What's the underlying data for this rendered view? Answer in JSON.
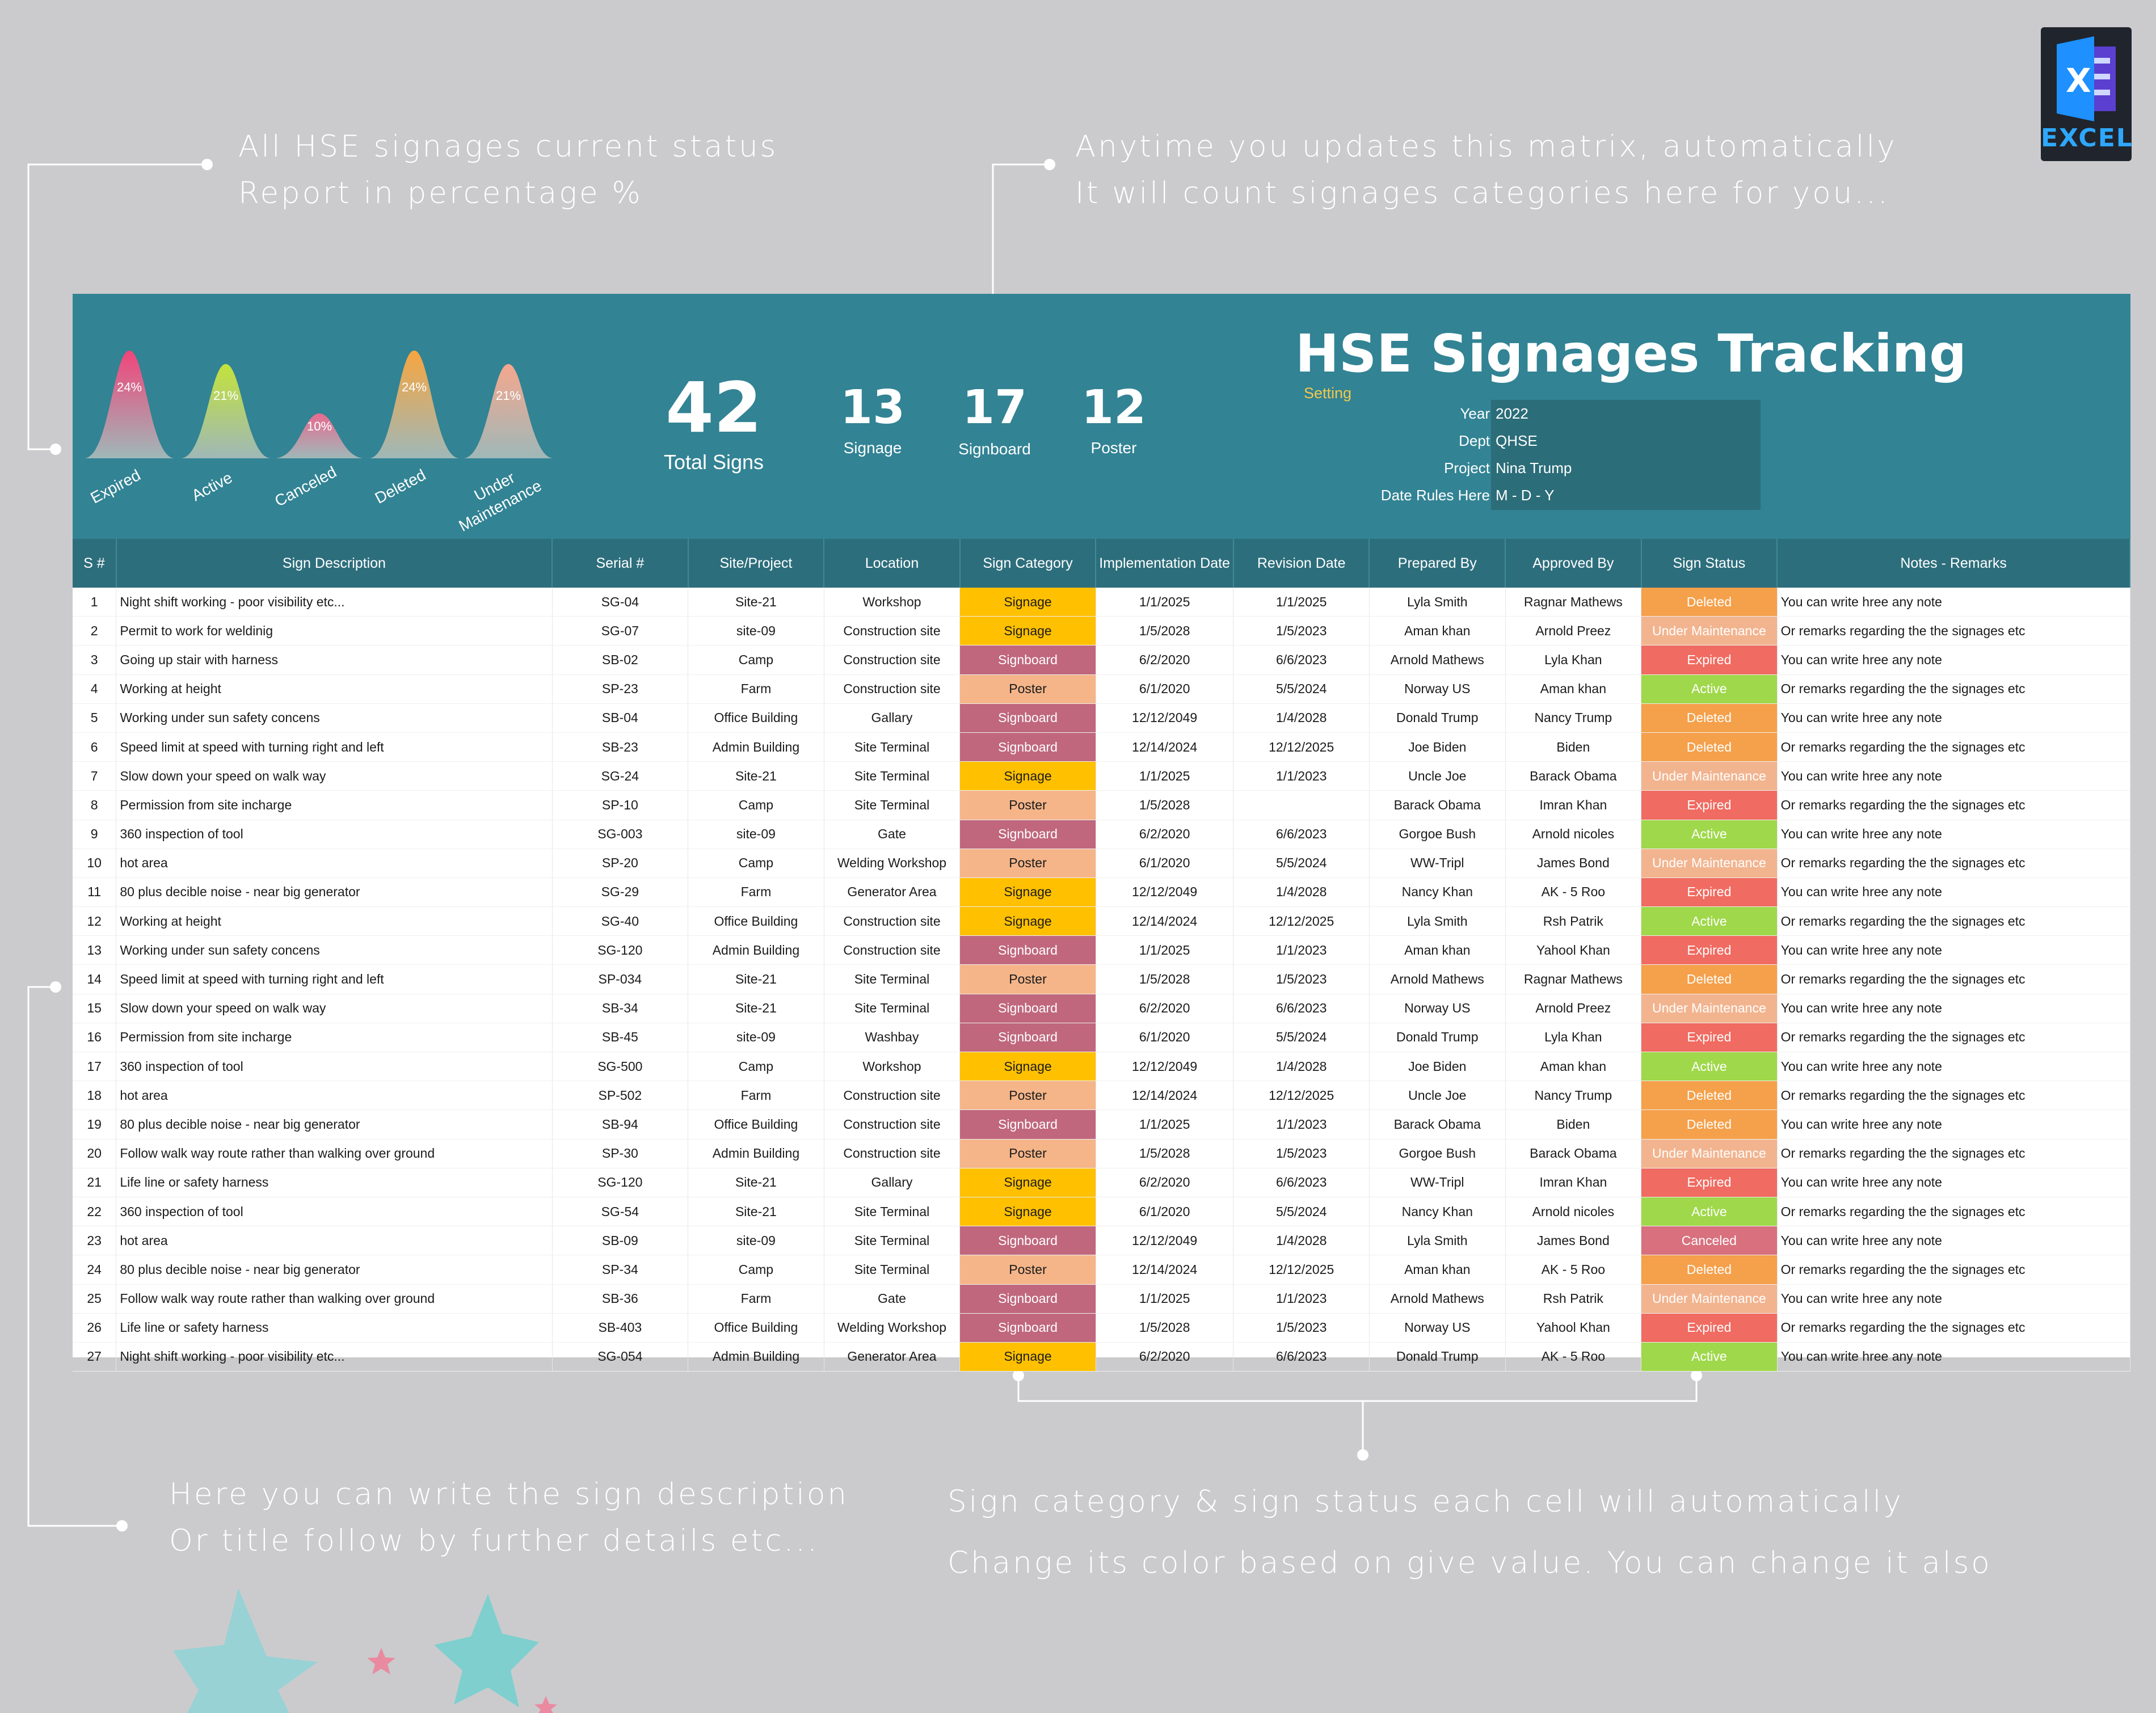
{
  "callouts": {
    "top_left": [
      "All HSE signages current status",
      "Report in percentage %"
    ],
    "top_right": [
      "Anytime you updates this matrix, automatically",
      "It will count signages categories here for you..."
    ],
    "bottom_left": [
      "Here you can write the sign description",
      "Or title follow by further details etc..."
    ],
    "bottom_right": [
      "Sign category & sign status each cell will automatically",
      "Change its color based on give value. You can change it also"
    ]
  },
  "logo": {
    "label": "EXCEL",
    "letter": "X",
    "icon": "excel-icon"
  },
  "title": "HSE Signages Tracking",
  "setting_label": "Setting",
  "settings": [
    {
      "label": "Year",
      "value": "2022"
    },
    {
      "label": "Dept",
      "value": "QHSE"
    },
    {
      "label": "Project",
      "value": "Nina Trump"
    },
    {
      "label": "Date Rules Here",
      "value": "M - D - Y"
    }
  ],
  "kpis": {
    "total": {
      "value": "42",
      "label": "Total Signs"
    },
    "signage": {
      "value": "13",
      "label": "Signage"
    },
    "signboard": {
      "value": "17",
      "label": "Signboard"
    },
    "poster": {
      "value": "12",
      "label": "Poster"
    }
  },
  "status_chart": {
    "type": "area",
    "categories": [
      "Expired",
      "Active",
      "Canceled",
      "Deleted",
      "Under Maintenance"
    ],
    "labels": [
      "24%",
      "21%",
      "10%",
      "24%",
      "21%"
    ],
    "values": [
      24,
      21,
      10,
      24,
      21
    ],
    "colors": [
      "#f0457a",
      "#c3e23a",
      "#e86a8f",
      "#f7a53f",
      "#f5a78e"
    ]
  },
  "colors": {
    "banner": "#328394",
    "header": "#2d6e7c",
    "signage": "#ffc000",
    "signboard": "#c0677d",
    "poster": "#f5b589",
    "deleted": "#f5a04a",
    "under_maintenance": "#f2b48f",
    "expired": "#f06b61",
    "active": "#9fd84a",
    "canceled": "#d8707e"
  },
  "table": {
    "headers": [
      "S #",
      "Sign Description",
      "Serial #",
      "Site/Project",
      "Location",
      "Sign Category",
      "Implementation Date",
      "Revision Date",
      "Prepared By",
      "Approved By",
      "Sign  Status",
      "Notes - Remarks"
    ],
    "rows": [
      [
        "1",
        "Night shift working - poor visibility etc...",
        "SG-04",
        "Site-21",
        "Workshop",
        "Signage",
        "1/1/2025",
        "1/1/2025",
        "Lyla Smith",
        "Ragnar Mathews",
        "Deleted",
        "You can write hree any note"
      ],
      [
        "2",
        "Permit to work for weldinig",
        "SG-07",
        "site-09",
        "Construction site",
        "Signage",
        "1/5/2028",
        "1/5/2023",
        "Aman khan",
        "Arnold Preez",
        "Under Maintenance",
        "Or remarks regarding the the signages etc"
      ],
      [
        "3",
        "Going up stair with harness",
        "SB-02",
        "Camp",
        "Construction site",
        "Signboard",
        "6/2/2020",
        "6/6/2023",
        "Arnold Mathews",
        "Lyla Khan",
        "Expired",
        "You can write hree any note"
      ],
      [
        "4",
        "Working at height",
        "SP-23",
        "Farm",
        "Construction site",
        "Poster",
        "6/1/2020",
        "5/5/2024",
        "Norway US",
        "Aman khan",
        "Active",
        "Or remarks regarding the the signages etc"
      ],
      [
        "5",
        "Working under sun safety concens",
        "SB-04",
        "Office Building",
        "Gallary",
        "Signboard",
        "12/12/2049",
        "1/4/2028",
        "Donald Trump",
        "Nancy Trump",
        "Deleted",
        "You can write hree any note"
      ],
      [
        "6",
        "Speed limit at speed with turning right and left",
        "SB-23",
        "Admin Building",
        "Site Terminal",
        "Signboard",
        "12/14/2024",
        "12/12/2025",
        "Joe Biden",
        "Biden",
        "Deleted",
        "Or remarks regarding the the signages etc"
      ],
      [
        "7",
        "Slow down your speed on walk way",
        "SG-24",
        "Site-21",
        "Site Terminal",
        "Signage",
        "1/1/2025",
        "1/1/2023",
        "Uncle Joe",
        "Barack Obama",
        "Under Maintenance",
        "You can write hree any note"
      ],
      [
        "8",
        "Permission from site incharge",
        "SP-10",
        "Camp",
        "Site Terminal",
        "Poster",
        "1/5/2028",
        "",
        "Barack Obama",
        "Imran Khan",
        "Expired",
        "Or remarks regarding the the signages etc"
      ],
      [
        "9",
        "360 inspection of tool",
        "SG-003",
        "site-09",
        "Gate",
        "Signboard",
        "6/2/2020",
        "6/6/2023",
        "Gorgoe Bush",
        "Arnold nicoles",
        "Active",
        "You can write hree any note"
      ],
      [
        "10",
        "hot area",
        "SP-20",
        "Camp",
        "Welding Workshop",
        "Poster",
        "6/1/2020",
        "5/5/2024",
        "WW-Tripl",
        "James Bond",
        "Under Maintenance",
        "Or remarks regarding the the signages etc"
      ],
      [
        "11",
        "80 plus decible noise - near big generator",
        "SG-29",
        "Farm",
        "Generator Area",
        "Signage",
        "12/12/2049",
        "1/4/2028",
        "Nancy Khan",
        "AK - 5 Roo",
        "Expired",
        "You can write hree any note"
      ],
      [
        "12",
        "Working at height",
        "SG-40",
        "Office Building",
        "Construction site",
        "Signage",
        "12/14/2024",
        "12/12/2025",
        "Lyla Smith",
        "Rsh Patrik",
        "Active",
        "Or remarks regarding the the signages etc"
      ],
      [
        "13",
        "Working under sun safety concens",
        "SG-120",
        "Admin Building",
        "Construction site",
        "Signboard",
        "1/1/2025",
        "1/1/2023",
        "Aman khan",
        "Yahool Khan",
        "Expired",
        "You can write hree any note"
      ],
      [
        "14",
        "Speed limit at speed with turning right and left",
        "SP-034",
        "Site-21",
        "Site Terminal",
        "Poster",
        "1/5/2028",
        "1/5/2023",
        "Arnold Mathews",
        "Ragnar Mathews",
        "Deleted",
        "Or remarks regarding the the signages etc"
      ],
      [
        "15",
        "Slow down your speed on walk way",
        "SB-34",
        "Site-21",
        "Site Terminal",
        "Signboard",
        "6/2/2020",
        "6/6/2023",
        "Norway US",
        "Arnold Preez",
        "Under Maintenance",
        "You can write hree any note"
      ],
      [
        "16",
        "Permission from site incharge",
        "SB-45",
        "site-09",
        "Washbay",
        "Signboard",
        "6/1/2020",
        "5/5/2024",
        "Donald Trump",
        "Lyla Khan",
        "Expired",
        "Or remarks regarding the the signages etc"
      ],
      [
        "17",
        "360 inspection of tool",
        "SG-500",
        "Camp",
        "Workshop",
        "Signage",
        "12/12/2049",
        "1/4/2028",
        "Joe Biden",
        "Aman khan",
        "Active",
        "You can write hree any note"
      ],
      [
        "18",
        "hot area",
        "SP-502",
        "Farm",
        "Construction site",
        "Poster",
        "12/14/2024",
        "12/12/2025",
        "Uncle Joe",
        "Nancy Trump",
        "Deleted",
        "Or remarks regarding the the signages etc"
      ],
      [
        "19",
        "80 plus decible noise - near big generator",
        "SB-94",
        "Office Building",
        "Construction site",
        "Signboard",
        "1/1/2025",
        "1/1/2023",
        "Barack Obama",
        "Biden",
        "Deleted",
        "You can write hree any note"
      ],
      [
        "20",
        "Follow walk way route rather than walking over ground",
        "SP-30",
        "Admin Building",
        "Construction site",
        "Poster",
        "1/5/2028",
        "1/5/2023",
        "Gorgoe Bush",
        "Barack Obama",
        "Under Maintenance",
        "Or remarks regarding the the signages etc"
      ],
      [
        "21",
        "Life line or safety harness",
        "SG-120",
        "Site-21",
        "Gallary",
        "Signage",
        "6/2/2020",
        "6/6/2023",
        "WW-Tripl",
        "Imran Khan",
        "Expired",
        "You can write hree any note"
      ],
      [
        "22",
        "360 inspection of tool",
        "SG-54",
        "Site-21",
        "Site Terminal",
        "Signage",
        "6/1/2020",
        "5/5/2024",
        "Nancy Khan",
        "Arnold nicoles",
        "Active",
        "Or remarks regarding the the signages etc"
      ],
      [
        "23",
        "hot area",
        "SB-09",
        "site-09",
        "Site Terminal",
        "Signboard",
        "12/12/2049",
        "1/4/2028",
        "Lyla Smith",
        "James Bond",
        "Canceled",
        "You can write hree any note"
      ],
      [
        "24",
        "80 plus decible noise - near big generator",
        "SP-34",
        "Camp",
        "Site Terminal",
        "Poster",
        "12/14/2024",
        "12/12/2025",
        "Aman khan",
        "AK - 5 Roo",
        "Deleted",
        "Or remarks regarding the the signages etc"
      ],
      [
        "25",
        "Follow walk way route rather than walking over ground",
        "SB-36",
        "Farm",
        "Gate",
        "Signboard",
        "1/1/2025",
        "1/1/2023",
        "Arnold Mathews",
        "Rsh Patrik",
        "Under Maintenance",
        "You can write hree any note"
      ],
      [
        "26",
        "Life line or safety harness",
        "SB-403",
        "Office Building",
        "Welding Workshop",
        "Signboard",
        "1/5/2028",
        "1/5/2023",
        "Norway US",
        "Yahool Khan",
        "Expired",
        "Or remarks regarding the the signages etc"
      ],
      [
        "27",
        "Night shift working - poor visibility etc...",
        "SG-054",
        "Admin Building",
        "Generator Area",
        "Signage",
        "6/2/2020",
        "6/6/2023",
        "Donald Trump",
        "AK - 5 Roo",
        "Active",
        "You can write hree any note"
      ]
    ]
  }
}
